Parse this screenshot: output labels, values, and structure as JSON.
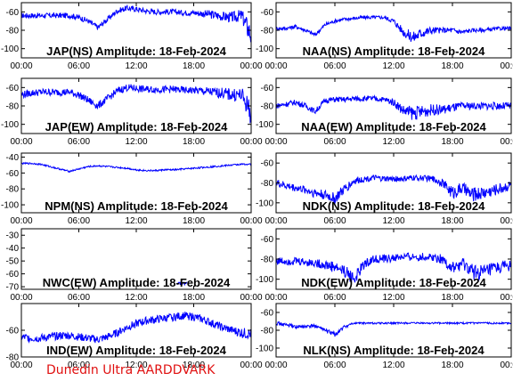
{
  "footer_text": "Dunedin Ultra AARDDVARK",
  "trace_color": "#0000ff",
  "footer_color": "#e01010",
  "chart_data": [
    {
      "type": "line",
      "title": "JAP(NS) Amplitude: 18-Feb-2024",
      "xlabel": "",
      "ylabel": "",
      "xticks": [
        "00:00",
        "06:00",
        "12:00",
        "18:00",
        "00:00"
      ],
      "yticks": [
        -60,
        -80,
        -100
      ],
      "ylim": [
        -110,
        -50
      ],
      "grid": false,
      "series": [
        {
          "x": [
            0,
            1,
            2,
            3,
            4,
            5,
            6,
            7,
            8,
            9,
            10,
            11,
            12,
            13,
            14,
            15,
            16,
            17,
            18,
            19,
            20,
            21,
            22,
            23,
            24
          ],
          "y": [
            -64,
            -64,
            -64,
            -64,
            -64,
            -64,
            -66,
            -70,
            -77,
            -68,
            -59,
            -56,
            -57,
            -59,
            -60,
            -60,
            -60,
            -61,
            -61,
            -62,
            -63,
            -65,
            -66,
            -64,
            -85
          ],
          "band": [
            3,
            3,
            3,
            3,
            3,
            3,
            3,
            3,
            3,
            3,
            3,
            3,
            3,
            3,
            3,
            3,
            3,
            3,
            3,
            4,
            5,
            5,
            6,
            7,
            14
          ]
        }
      ]
    },
    {
      "type": "line",
      "title": "NAA(NS) Amplitude: 18-Feb-2024",
      "xlabel": "",
      "ylabel": "",
      "xticks": [
        "00:00",
        "06:00",
        "12:00",
        "18:00",
        "00:00"
      ],
      "yticks": [
        -60,
        -80,
        -100
      ],
      "ylim": [
        -110,
        -50
      ],
      "grid": false,
      "series": [
        {
          "x": [
            0,
            1,
            2,
            3,
            4,
            5,
            6,
            7,
            8,
            9,
            10,
            11,
            12,
            13,
            14,
            15,
            16,
            17,
            18,
            19,
            20,
            21,
            22,
            23,
            24
          ],
          "y": [
            -78,
            -78,
            -76,
            -80,
            -85,
            -74,
            -70,
            -68,
            -67,
            -66,
            -66,
            -66,
            -70,
            -82,
            -88,
            -82,
            -80,
            -80,
            -80,
            -82,
            -80,
            -80,
            -79,
            -78,
            -78
          ],
          "band": [
            2,
            2,
            2,
            2,
            2,
            2,
            2,
            2,
            2,
            2,
            2,
            2,
            3,
            5,
            7,
            6,
            4,
            3,
            3,
            3,
            2,
            2,
            2,
            2,
            2
          ]
        }
      ]
    },
    {
      "type": "line",
      "title": "JAP(EW) Amplitude: 18-Feb-2024",
      "xlabel": "",
      "ylabel": "",
      "xticks": [
        "00:00",
        "06:00",
        "12:00",
        "18:00",
        "00:00"
      ],
      "yticks": [
        -60,
        -80,
        -100
      ],
      "ylim": [
        -110,
        -50
      ],
      "grid": false,
      "series": [
        {
          "x": [
            0,
            1,
            2,
            3,
            4,
            5,
            6,
            7,
            8,
            9,
            10,
            11,
            12,
            13,
            14,
            15,
            16,
            17,
            18,
            19,
            20,
            21,
            22,
            23,
            24
          ],
          "y": [
            -68,
            -66,
            -65,
            -65,
            -65,
            -65,
            -68,
            -74,
            -80,
            -72,
            -64,
            -60,
            -61,
            -62,
            -62,
            -62,
            -62,
            -63,
            -63,
            -64,
            -65,
            -66,
            -68,
            -68,
            -88
          ],
          "band": [
            4,
            4,
            4,
            4,
            4,
            4,
            4,
            4,
            4,
            4,
            4,
            4,
            4,
            4,
            4,
            4,
            4,
            4,
            4,
            5,
            5,
            6,
            7,
            8,
            14
          ]
        }
      ]
    },
    {
      "type": "line",
      "title": "NAA(EW) Amplitude: 18-Feb-2024",
      "xlabel": "",
      "ylabel": "",
      "xticks": [
        "00:00",
        "06:00",
        "12:00",
        "18:00",
        "00:00"
      ],
      "yticks": [
        -60,
        -80,
        -100
      ],
      "ylim": [
        -110,
        -50
      ],
      "grid": false,
      "series": [
        {
          "x": [
            0,
            1,
            2,
            3,
            4,
            5,
            6,
            7,
            8,
            9,
            10,
            11,
            12,
            13,
            14,
            15,
            16,
            17,
            18,
            19,
            20,
            21,
            22,
            23,
            24
          ],
          "y": [
            -80,
            -78,
            -76,
            -80,
            -86,
            -74,
            -73,
            -73,
            -72,
            -72,
            -72,
            -73,
            -76,
            -85,
            -88,
            -86,
            -84,
            -84,
            -82,
            -80,
            -80,
            -80,
            -80,
            -80,
            -80
          ],
          "band": [
            3,
            3,
            3,
            3,
            3,
            3,
            3,
            3,
            3,
            3,
            3,
            3,
            4,
            6,
            8,
            7,
            6,
            5,
            5,
            4,
            4,
            4,
            4,
            4,
            4
          ]
        }
      ]
    },
    {
      "type": "line",
      "title": "NPM(NS) Amplitude: 18-Feb-2024",
      "xlabel": "",
      "ylabel": "",
      "xticks": [
        "00:00",
        "06:00",
        "12:00",
        "18:00",
        "00:00"
      ],
      "yticks": [
        -40,
        -60,
        -80,
        -100
      ],
      "ylim": [
        -110,
        -35
      ],
      "grid": false,
      "series": [
        {
          "x": [
            0,
            1,
            2,
            3,
            4,
            5,
            6,
            7,
            8,
            9,
            10,
            11,
            12,
            13,
            14,
            15,
            16,
            17,
            18,
            19,
            20,
            21,
            22,
            23,
            24
          ],
          "y": [
            -48,
            -48,
            -49,
            -52,
            -55,
            -58,
            -55,
            -52,
            -51,
            -52,
            -53,
            -54,
            -56,
            -57,
            -57,
            -56,
            -56,
            -55,
            -54,
            -53,
            -52,
            -51,
            -50,
            -49,
            -49
          ],
          "band": [
            1,
            1,
            1,
            1,
            1,
            1,
            1,
            1,
            1,
            1,
            1,
            1,
            1,
            1,
            1,
            1,
            1,
            1,
            1,
            1,
            1,
            1,
            1,
            1,
            1
          ]
        }
      ]
    },
    {
      "type": "line",
      "title": "NDK(NS) Amplitude: 18-Feb-2024",
      "xlabel": "",
      "ylabel": "",
      "xticks": [
        "00:00",
        "06:00",
        "12:00",
        "18:00",
        "00:00"
      ],
      "yticks": [
        -60,
        -80,
        -100
      ],
      "ylim": [
        -110,
        -50
      ],
      "grid": false,
      "series": [
        {
          "x": [
            0,
            1,
            2,
            3,
            4,
            5,
            6,
            7,
            8,
            9,
            10,
            11,
            12,
            13,
            14,
            15,
            16,
            17,
            18,
            19,
            20,
            21,
            22,
            23,
            24
          ],
          "y": [
            -80,
            -83,
            -85,
            -87,
            -90,
            -92,
            -96,
            -86,
            -78,
            -76,
            -75,
            -76,
            -76,
            -76,
            -75,
            -75,
            -76,
            -80,
            -90,
            -85,
            -92,
            -90,
            -88,
            -85,
            -82
          ],
          "band": [
            4,
            4,
            4,
            4,
            5,
            5,
            6,
            5,
            4,
            3,
            3,
            3,
            3,
            3,
            3,
            3,
            3,
            4,
            7,
            6,
            7,
            7,
            6,
            6,
            5
          ]
        }
      ]
    },
    {
      "type": "line",
      "title": "NWC(EW) Amplitude: 18-Feb-2024",
      "xlabel": "",
      "ylabel": "",
      "xticks": [
        "00:00",
        "06:00",
        "12:00",
        "18:00",
        "00:00"
      ],
      "yticks": [
        -30,
        -40,
        -50,
        -60,
        -70
      ],
      "ylim": [
        -72,
        -25
      ],
      "grid": false,
      "series": [
        {
          "x": [
            16.2,
            16.3,
            16.4,
            16.5,
            16.6,
            16.7,
            16.8,
            16.9,
            17.0,
            17.1,
            17.2,
            17.3
          ],
          "y": [
            -67.5,
            -67.2,
            -67.6,
            -67.3,
            -67.5,
            -67.4,
            -67.6,
            -67.3,
            -67.5,
            -67.4,
            -67.2,
            -67.5
          ],
          "band": [
            1,
            1,
            1,
            1,
            1,
            1,
            1,
            1,
            1,
            1,
            1,
            1
          ]
        }
      ]
    },
    {
      "type": "line",
      "title": "NDK(EW) Amplitude: 18-Feb-2024",
      "xlabel": "",
      "ylabel": "",
      "xticks": [
        "00:00",
        "06:00",
        "12:00",
        "18:00",
        "00:00"
      ],
      "yticks": [
        -60,
        -80,
        -100
      ],
      "ylim": [
        -110,
        -50
      ],
      "grid": false,
      "series": [
        {
          "x": [
            0,
            1,
            2,
            3,
            4,
            5,
            6,
            7,
            8,
            9,
            10,
            11,
            12,
            13,
            14,
            15,
            16,
            17,
            18,
            19,
            20,
            21,
            22,
            23,
            24
          ],
          "y": [
            -82,
            -82,
            -82,
            -83,
            -84,
            -86,
            -88,
            -92,
            -100,
            -85,
            -80,
            -80,
            -79,
            -78,
            -78,
            -78,
            -78,
            -80,
            -90,
            -85,
            -92,
            -94,
            -90,
            -88,
            -86
          ],
          "band": [
            4,
            4,
            4,
            4,
            4,
            5,
            6,
            6,
            7,
            5,
            4,
            4,
            4,
            4,
            4,
            4,
            4,
            5,
            7,
            6,
            8,
            8,
            7,
            6,
            6
          ]
        }
      ]
    },
    {
      "type": "line",
      "title": "IND(EW) Amplitude: 18-Feb-2024",
      "xlabel": "",
      "ylabel": "",
      "xticks": [
        "00:00",
        "06:00",
        "12:00",
        "18:00",
        "00:00"
      ],
      "yticks": [
        -60,
        -80
      ],
      "ylim": [
        -80,
        -40
      ],
      "grid": false,
      "series": [
        {
          "x": [
            0,
            1,
            2,
            3,
            4,
            5,
            6,
            7,
            8,
            9,
            10,
            11,
            12,
            13,
            14,
            15,
            16,
            17,
            18,
            19,
            20,
            21,
            22,
            23,
            24
          ],
          "y": [
            -65,
            -66,
            -66,
            -65,
            -64,
            -64,
            -65,
            -66,
            -67,
            -65,
            -62,
            -58,
            -55,
            -53,
            -52,
            -51,
            -50,
            -49,
            -50,
            -52,
            -55,
            -58,
            -60,
            -62,
            -63
          ],
          "band": [
            3,
            3,
            3,
            3,
            3,
            3,
            3,
            3,
            3,
            3,
            3,
            3,
            3,
            3,
            3,
            3,
            3,
            3,
            3,
            3,
            3,
            3,
            3,
            4,
            4
          ]
        }
      ]
    },
    {
      "type": "line",
      "title": "NLK(NS) Amplitude: 18-Feb-2024",
      "xlabel": "",
      "ylabel": "",
      "xticks": [
        "00:00",
        "06:00",
        "12:00",
        "18:00",
        "00:00"
      ],
      "yticks": [
        -60,
        -80,
        -100
      ],
      "ylim": [
        -110,
        -50
      ],
      "grid": false,
      "series": [
        {
          "x": [
            0,
            1,
            2,
            3,
            4,
            5,
            6,
            7,
            8,
            9,
            10,
            11,
            12,
            13,
            14,
            15,
            16,
            17,
            18,
            19,
            20,
            21,
            22,
            23,
            24
          ],
          "y": [
            -72,
            -74,
            -76,
            -76,
            -75,
            -80,
            -85,
            -76,
            -72,
            -72,
            -72,
            -72,
            -72,
            -72,
            -72,
            -72,
            -72,
            -72,
            -72,
            -72,
            -72,
            -72,
            -72,
            -72,
            -72
          ],
          "band": [
            2,
            2,
            2,
            2,
            2,
            2,
            3,
            2,
            1,
            1,
            1,
            1,
            1,
            1,
            1,
            1,
            1,
            1,
            1,
            1,
            1,
            1,
            1,
            1,
            1
          ]
        }
      ]
    }
  ]
}
